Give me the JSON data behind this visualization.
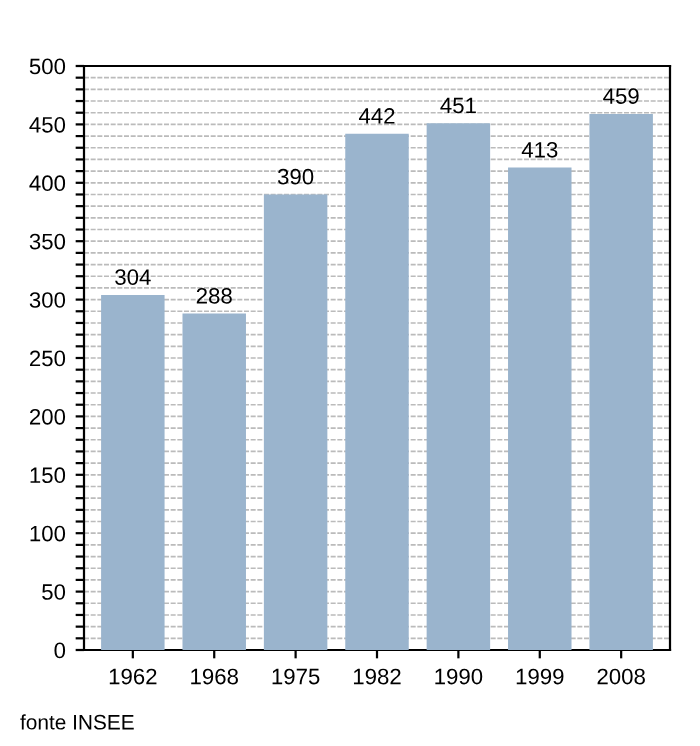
{
  "chart_data": {
    "type": "bar",
    "categories": [
      "1962",
      "1968",
      "1975",
      "1982",
      "1990",
      "1999",
      "2008"
    ],
    "values": [
      304,
      288,
      390,
      442,
      451,
      413,
      459
    ],
    "color": "#9ab4cd",
    "data_labels": true,
    "grid": "y",
    "ylim": [
      0,
      500
    ],
    "yticks": [
      0,
      {
        "value": 10,
        "label": null
      },
      {
        "value": 20,
        "label": null
      },
      {
        "value": 30,
        "label": null
      },
      {
        "value": 40,
        "label": null
      },
      50,
      {
        "value": 60,
        "label": null
      },
      {
        "value": 70,
        "label": null
      },
      {
        "value": 80,
        "label": null
      },
      {
        "value": 90,
        "label": null
      },
      100,
      {
        "value": 110,
        "label": null
      },
      {
        "value": 120,
        "label": null
      },
      {
        "value": 130,
        "label": null
      },
      {
        "value": 140,
        "label": null
      },
      150,
      {
        "value": 160,
        "label": null
      },
      {
        "value": 170,
        "label": null
      },
      {
        "value": 180,
        "label": null
      },
      {
        "value": 190,
        "label": null
      },
      200,
      {
        "value": 210,
        "label": null
      },
      {
        "value": 220,
        "label": null
      },
      {
        "value": 230,
        "label": null
      },
      {
        "value": 240,
        "label": null
      },
      250,
      {
        "value": 260,
        "label": null
      },
      {
        "value": 270,
        "label": null
      },
      {
        "value": 280,
        "label": null
      },
      {
        "value": 290,
        "label": null
      },
      300,
      {
        "value": 310,
        "label": null
      },
      {
        "value": 320,
        "label": null
      },
      {
        "value": 330,
        "label": null
      },
      {
        "value": 340,
        "label": null
      },
      350,
      {
        "value": 360,
        "label": null
      },
      {
        "value": 370,
        "label": null
      },
      {
        "value": 380,
        "label": null
      },
      {
        "value": 390,
        "label": null
      },
      400,
      {
        "value": 410,
        "label": null
      },
      {
        "value": 420,
        "label": null
      },
      {
        "value": 430,
        "label": null
      },
      {
        "value": 440,
        "label": null
      },
      450,
      {
        "value": 460,
        "label": null
      },
      {
        "value": 470,
        "label": null
      },
      {
        "value": 480,
        "label": null
      },
      {
        "value": 490,
        "label": null
      },
      500
    ],
    "annotations": [
      "fonte INSEE"
    ]
  }
}
